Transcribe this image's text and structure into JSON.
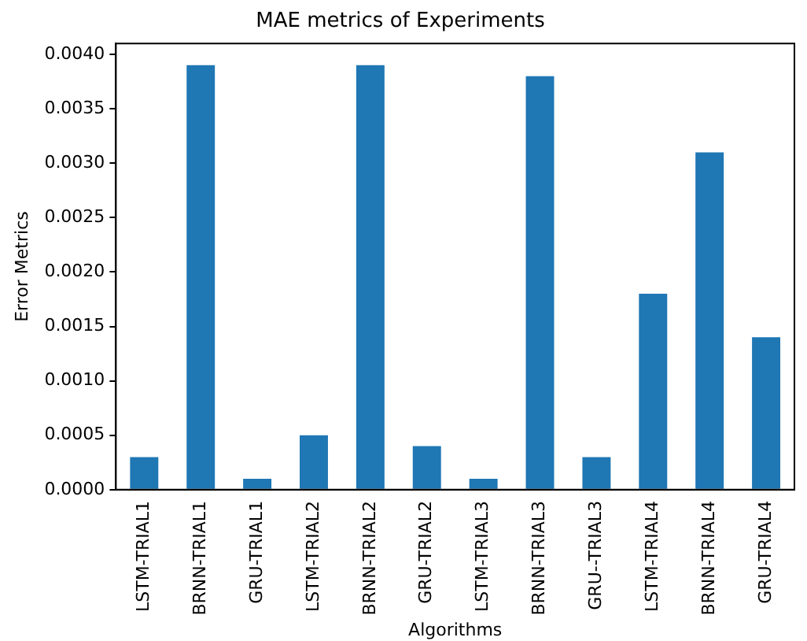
{
  "chart_data": {
    "type": "bar",
    "title": "MAE metrics of Experiments",
    "xlabel": "Algorithms",
    "ylabel": "Error Metrics",
    "categories": [
      "LSTM-TRIAL1",
      "BRNN-TRIAL1",
      "GRU-TRIAL1",
      "LSTM-TRIAL2",
      "BRNN-TRIAL2",
      "GRU-TRIAL2",
      "LSTM-TRIAL3",
      "BRNN-TRIAL3",
      "GRU--TRIAL3",
      "LSTM-TRIAL4",
      "BRNN-TRIAL4",
      "GRU-TRIAL4"
    ],
    "values": [
      0.0003,
      0.0039,
      0.0001,
      0.0005,
      0.0039,
      0.0004,
      0.0001,
      0.0038,
      0.0003,
      0.0018,
      0.0031,
      0.0014
    ],
    "color": "#1f77b4",
    "ylim": [
      0,
      0.0041
    ],
    "yticks": [
      {
        "value": 0,
        "label": "0.0000"
      },
      {
        "value": 0.0005,
        "label": "0.0005"
      },
      {
        "value": 0.001,
        "label": "0.0010"
      },
      {
        "value": 0.0015,
        "label": "0.0015"
      },
      {
        "value": 0.002,
        "label": "0.0020"
      },
      {
        "value": 0.0025,
        "label": "0.0025"
      },
      {
        "value": 0.003,
        "label": "0.0030"
      },
      {
        "value": 0.0035,
        "label": "0.0035"
      },
      {
        "value": 0.004,
        "label": "0.0040"
      }
    ],
    "grid": false,
    "legend": false
  }
}
